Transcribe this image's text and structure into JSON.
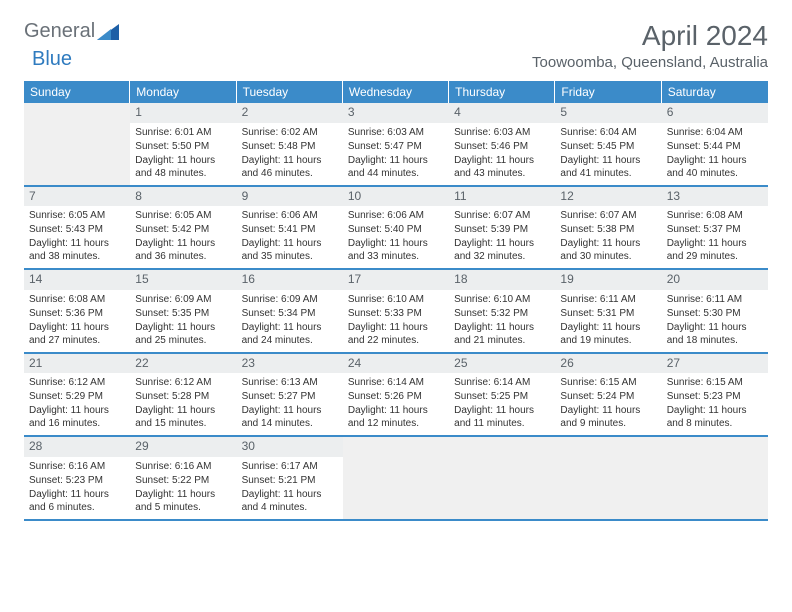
{
  "brand": {
    "word1": "General",
    "word2": "Blue"
  },
  "title": "April 2024",
  "location": "Toowoomba, Queensland, Australia",
  "colors": {
    "header_bg": "#3b8bc9",
    "header_text": "#ffffff",
    "daynum_bg": "#eceeef",
    "rule": "#3b8bc9",
    "empty_bg": "#f0f0f0",
    "body_text": "#333333",
    "muted_text": "#5a6269",
    "brand_gray": "#6a7178",
    "brand_blue": "#2f7bbf"
  },
  "dayNames": [
    "Sunday",
    "Monday",
    "Tuesday",
    "Wednesday",
    "Thursday",
    "Friday",
    "Saturday"
  ],
  "weeks": [
    [
      {
        "date": null
      },
      {
        "date": "1",
        "sunrise": "Sunrise: 6:01 AM",
        "sunset": "Sunset: 5:50 PM",
        "daylight": "Daylight: 11 hours and 48 minutes."
      },
      {
        "date": "2",
        "sunrise": "Sunrise: 6:02 AM",
        "sunset": "Sunset: 5:48 PM",
        "daylight": "Daylight: 11 hours and 46 minutes."
      },
      {
        "date": "3",
        "sunrise": "Sunrise: 6:03 AM",
        "sunset": "Sunset: 5:47 PM",
        "daylight": "Daylight: 11 hours and 44 minutes."
      },
      {
        "date": "4",
        "sunrise": "Sunrise: 6:03 AM",
        "sunset": "Sunset: 5:46 PM",
        "daylight": "Daylight: 11 hours and 43 minutes."
      },
      {
        "date": "5",
        "sunrise": "Sunrise: 6:04 AM",
        "sunset": "Sunset: 5:45 PM",
        "daylight": "Daylight: 11 hours and 41 minutes."
      },
      {
        "date": "6",
        "sunrise": "Sunrise: 6:04 AM",
        "sunset": "Sunset: 5:44 PM",
        "daylight": "Daylight: 11 hours and 40 minutes."
      }
    ],
    [
      {
        "date": "7",
        "sunrise": "Sunrise: 6:05 AM",
        "sunset": "Sunset: 5:43 PM",
        "daylight": "Daylight: 11 hours and 38 minutes."
      },
      {
        "date": "8",
        "sunrise": "Sunrise: 6:05 AM",
        "sunset": "Sunset: 5:42 PM",
        "daylight": "Daylight: 11 hours and 36 minutes."
      },
      {
        "date": "9",
        "sunrise": "Sunrise: 6:06 AM",
        "sunset": "Sunset: 5:41 PM",
        "daylight": "Daylight: 11 hours and 35 minutes."
      },
      {
        "date": "10",
        "sunrise": "Sunrise: 6:06 AM",
        "sunset": "Sunset: 5:40 PM",
        "daylight": "Daylight: 11 hours and 33 minutes."
      },
      {
        "date": "11",
        "sunrise": "Sunrise: 6:07 AM",
        "sunset": "Sunset: 5:39 PM",
        "daylight": "Daylight: 11 hours and 32 minutes."
      },
      {
        "date": "12",
        "sunrise": "Sunrise: 6:07 AM",
        "sunset": "Sunset: 5:38 PM",
        "daylight": "Daylight: 11 hours and 30 minutes."
      },
      {
        "date": "13",
        "sunrise": "Sunrise: 6:08 AM",
        "sunset": "Sunset: 5:37 PM",
        "daylight": "Daylight: 11 hours and 29 minutes."
      }
    ],
    [
      {
        "date": "14",
        "sunrise": "Sunrise: 6:08 AM",
        "sunset": "Sunset: 5:36 PM",
        "daylight": "Daylight: 11 hours and 27 minutes."
      },
      {
        "date": "15",
        "sunrise": "Sunrise: 6:09 AM",
        "sunset": "Sunset: 5:35 PM",
        "daylight": "Daylight: 11 hours and 25 minutes."
      },
      {
        "date": "16",
        "sunrise": "Sunrise: 6:09 AM",
        "sunset": "Sunset: 5:34 PM",
        "daylight": "Daylight: 11 hours and 24 minutes."
      },
      {
        "date": "17",
        "sunrise": "Sunrise: 6:10 AM",
        "sunset": "Sunset: 5:33 PM",
        "daylight": "Daylight: 11 hours and 22 minutes."
      },
      {
        "date": "18",
        "sunrise": "Sunrise: 6:10 AM",
        "sunset": "Sunset: 5:32 PM",
        "daylight": "Daylight: 11 hours and 21 minutes."
      },
      {
        "date": "19",
        "sunrise": "Sunrise: 6:11 AM",
        "sunset": "Sunset: 5:31 PM",
        "daylight": "Daylight: 11 hours and 19 minutes."
      },
      {
        "date": "20",
        "sunrise": "Sunrise: 6:11 AM",
        "sunset": "Sunset: 5:30 PM",
        "daylight": "Daylight: 11 hours and 18 minutes."
      }
    ],
    [
      {
        "date": "21",
        "sunrise": "Sunrise: 6:12 AM",
        "sunset": "Sunset: 5:29 PM",
        "daylight": "Daylight: 11 hours and 16 minutes."
      },
      {
        "date": "22",
        "sunrise": "Sunrise: 6:12 AM",
        "sunset": "Sunset: 5:28 PM",
        "daylight": "Daylight: 11 hours and 15 minutes."
      },
      {
        "date": "23",
        "sunrise": "Sunrise: 6:13 AM",
        "sunset": "Sunset: 5:27 PM",
        "daylight": "Daylight: 11 hours and 14 minutes."
      },
      {
        "date": "24",
        "sunrise": "Sunrise: 6:14 AM",
        "sunset": "Sunset: 5:26 PM",
        "daylight": "Daylight: 11 hours and 12 minutes."
      },
      {
        "date": "25",
        "sunrise": "Sunrise: 6:14 AM",
        "sunset": "Sunset: 5:25 PM",
        "daylight": "Daylight: 11 hours and 11 minutes."
      },
      {
        "date": "26",
        "sunrise": "Sunrise: 6:15 AM",
        "sunset": "Sunset: 5:24 PM",
        "daylight": "Daylight: 11 hours and 9 minutes."
      },
      {
        "date": "27",
        "sunrise": "Sunrise: 6:15 AM",
        "sunset": "Sunset: 5:23 PM",
        "daylight": "Daylight: 11 hours and 8 minutes."
      }
    ],
    [
      {
        "date": "28",
        "sunrise": "Sunrise: 6:16 AM",
        "sunset": "Sunset: 5:23 PM",
        "daylight": "Daylight: 11 hours and 6 minutes."
      },
      {
        "date": "29",
        "sunrise": "Sunrise: 6:16 AM",
        "sunset": "Sunset: 5:22 PM",
        "daylight": "Daylight: 11 hours and 5 minutes."
      },
      {
        "date": "30",
        "sunrise": "Sunrise: 6:17 AM",
        "sunset": "Sunset: 5:21 PM",
        "daylight": "Daylight: 11 hours and 4 minutes."
      },
      {
        "date": null
      },
      {
        "date": null
      },
      {
        "date": null
      },
      {
        "date": null
      }
    ]
  ]
}
